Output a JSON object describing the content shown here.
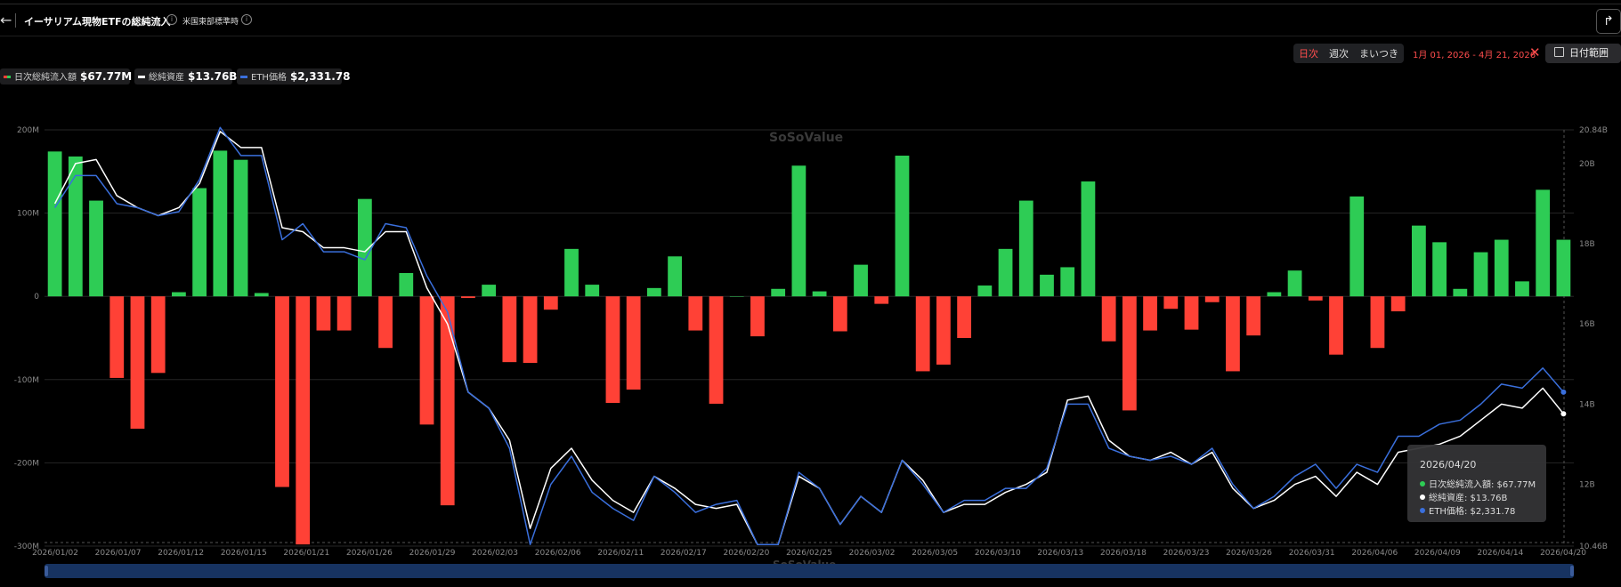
{
  "header": {
    "back_icon": "back-arrow-icon",
    "title": "イーサリアム現物ETFの総純流入",
    "timezone": "米国東部標準時",
    "share_icon": "share-icon"
  },
  "controls": {
    "periods": [
      "日次",
      "週次",
      "まいつき"
    ],
    "active_period": "日次",
    "date_range": "1月 01, 2026 - 4月 21, 2026",
    "date_button": "日付範囲"
  },
  "legend": {
    "inflow": {
      "label": "日次総純流入額",
      "value": "$67.77M"
    },
    "assets": {
      "label": "総純資産",
      "value": "$13.76B"
    },
    "eth": {
      "label": "ETH価格",
      "value": "$2,331.78"
    }
  },
  "watermark": {
    "text": "SoSoValue"
  },
  "tooltip": {
    "date": "2026/04/20",
    "inflow": "日次総純流入額: $67.77M",
    "assets": "総純資産: $13.76B",
    "eth": "ETH価格: $2,331.78"
  },
  "colors": {
    "positive": "#2ecc55",
    "negative": "#ff4136",
    "assets_line": "#ffffff",
    "eth_line": "#3a6fdc",
    "date_range": "#ff4d4d"
  },
  "chart_data": {
    "type": "bar",
    "y_left": {
      "ylim": [
        -300,
        200
      ],
      "ticks": [
        "200M",
        "100M",
        "0",
        "-100M",
        "-200M",
        "-300M"
      ]
    },
    "y_right": {
      "ylim": [
        10.46,
        20.84
      ],
      "ticks": [
        "20.84B",
        "20B",
        "18B",
        "16B",
        "14B",
        "12B",
        "10.46B"
      ]
    },
    "x_ticks": [
      "2026/01/02",
      "2026/01/07",
      "2026/01/12",
      "2026/01/15",
      "2026/01/21",
      "2026/01/26",
      "2026/01/29",
      "2026/02/03",
      "2026/02/06",
      "2026/02/11",
      "2026/02/17",
      "2026/02/20",
      "2026/02/25",
      "2026/03/02",
      "2026/03/05",
      "2026/03/10",
      "2026/03/13",
      "2026/03/18",
      "2026/03/23",
      "2026/03/26",
      "2026/03/31",
      "2026/04/06",
      "2026/04/09",
      "2026/04/14",
      "2026/04/20"
    ],
    "series": [
      {
        "name": "日次総純流入額",
        "unit": "M",
        "values": [
          174,
          168,
          115,
          -98,
          -159,
          -92,
          5,
          130,
          175,
          164,
          4,
          -229,
          -298,
          -41,
          -41,
          117,
          -62,
          28,
          -154,
          -251,
          -2,
          14,
          -79,
          -80,
          -16,
          57,
          14,
          -128,
          -112,
          10,
          48,
          -41,
          -129,
          0,
          -48,
          9,
          157,
          6,
          -42,
          38,
          -9,
          169,
          -90,
          -82,
          -50,
          13,
          57,
          115,
          26,
          35,
          138,
          -54,
          -137,
          -41,
          -15,
          -40,
          -7,
          -90,
          -47,
          5,
          31,
          -5,
          -70,
          120,
          -62,
          -18,
          85,
          65,
          9,
          53,
          68,
          18,
          128,
          68
        ]
      },
      {
        "name": "総純資産",
        "unit": "B",
        "values": [
          19.0,
          20.0,
          20.1,
          19.2,
          18.9,
          18.7,
          18.9,
          19.5,
          20.8,
          20.4,
          20.4,
          18.4,
          18.3,
          17.9,
          17.9,
          17.8,
          18.3,
          18.3,
          16.9,
          16.0,
          14.3,
          13.9,
          13.1,
          10.9,
          12.4,
          12.9,
          12.1,
          11.6,
          11.3,
          12.2,
          11.9,
          11.5,
          11.4,
          11.5,
          10.5,
          10.5,
          12.2,
          11.9,
          11.0,
          11.7,
          11.3,
          12.6,
          12.1,
          11.3,
          11.5,
          11.5,
          11.8,
          12.0,
          12.3,
          14.1,
          14.2,
          13.1,
          12.7,
          12.6,
          12.8,
          12.5,
          12.8,
          11.9,
          11.4,
          11.6,
          12.0,
          12.2,
          11.7,
          12.3,
          12.0,
          12.8,
          12.9,
          13.0,
          13.2,
          13.6,
          14.0,
          13.9,
          14.4,
          13.76
        ]
      },
      {
        "name": "ETH価格",
        "unit": "$",
        "values": [
          18.9,
          19.7,
          19.7,
          19.0,
          18.9,
          18.7,
          18.8,
          19.6,
          20.9,
          20.2,
          20.2,
          18.1,
          18.5,
          17.8,
          17.8,
          17.6,
          18.5,
          18.4,
          17.2,
          16.3,
          14.3,
          13.9,
          12.9,
          10.5,
          12.0,
          12.7,
          11.8,
          11.4,
          11.1,
          12.2,
          11.8,
          11.3,
          11.5,
          11.6,
          10.5,
          10.5,
          12.3,
          11.9,
          11.0,
          11.7,
          11.3,
          12.6,
          12.0,
          11.3,
          11.6,
          11.6,
          11.9,
          11.9,
          12.4,
          14.0,
          14.0,
          12.9,
          12.7,
          12.6,
          12.7,
          12.5,
          12.9,
          12.0,
          11.4,
          11.7,
          12.2,
          12.5,
          11.9,
          12.5,
          12.3,
          13.2,
          13.2,
          13.5,
          13.6,
          14.0,
          14.5,
          14.4,
          14.9,
          14.3
        ]
      }
    ]
  }
}
